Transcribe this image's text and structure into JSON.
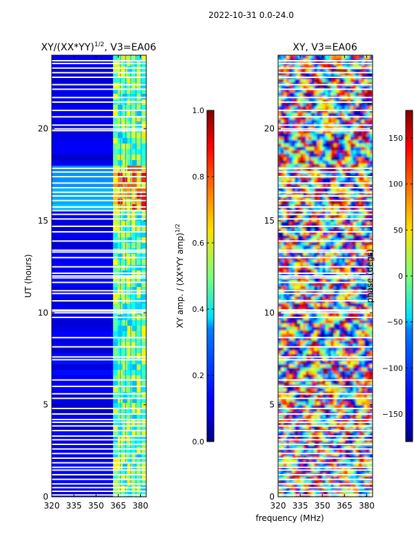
{
  "suptitle": "2022-10-31 0.0-24.0",
  "shared_xlabel": "frequency (MHz)",
  "chart_data": [
    {
      "type": "heatmap",
      "title": "XY/(XX*YY)",
      "title_superscript": "1/2",
      "title_suffix": ", V3=EA06",
      "xlabel": "",
      "ylabel": "UT (hours)",
      "xlim": [
        320,
        384
      ],
      "ylim": [
        0,
        24
      ],
      "x_ticks": [
        320,
        335,
        350,
        365,
        380
      ],
      "x_tick_labels": [
        "320",
        "335",
        "350",
        "365",
        "380"
      ],
      "y_ticks": [
        0,
        5,
        10,
        15,
        20
      ],
      "y_tick_labels": [
        "0",
        "5",
        "10",
        "15",
        "20"
      ],
      "colorbar": {
        "label": "XY amp. / (XX*YY amp)",
        "label_superscript": "1/2",
        "range": [
          0.0,
          1.0
        ],
        "ticks": [
          0.0,
          0.2,
          0.4,
          0.6,
          0.8,
          1.0
        ],
        "tick_labels": [
          "0.0",
          "0.2",
          "0.4",
          "0.6",
          "0.8",
          "1.0"
        ],
        "colormap": "jet"
      },
      "hot_band_mhz": [
        361.5,
        384
      ],
      "hot_channel_lines_mhz": [
        366.5,
        370,
        373.5,
        377,
        380.5
      ],
      "bright_ut_band": [
        15.5,
        18
      ],
      "flagged_ut_hours": [
        0.1,
        0.3,
        0.5,
        0.7,
        0.95,
        1.2,
        1.45,
        1.6,
        1.85,
        2.1,
        2.35,
        2.6,
        2.85,
        3.1,
        3.3,
        3.6,
        3.85,
        4.05,
        4.2,
        4.5,
        4.8,
        5.35,
        5.6,
        6.0,
        6.35,
        7.45,
        7.6,
        8.15,
        8.65,
        9.75,
        10.0,
        10.1,
        10.15,
        10.65,
        11.05,
        11.2,
        11.65,
        11.9,
        12.0,
        12.15,
        12.5,
        13.0,
        13.3,
        13.4,
        13.9,
        14.4,
        14.7,
        15.1,
        15.35,
        15.55,
        15.75,
        16.1,
        16.35,
        16.55,
        16.8,
        17.05,
        17.4,
        17.65,
        17.85,
        19.9,
        20.0,
        20.2,
        20.65,
        21.0,
        21.45,
        21.7,
        22.15,
        22.4,
        22.8,
        23.05,
        23.3,
        23.55,
        23.7
      ]
    },
    {
      "type": "heatmap",
      "title": "XY, V3=EA06",
      "xlabel": "frequency (MHz)",
      "ylabel": "",
      "xlim": [
        320,
        384
      ],
      "ylim": [
        0,
        24
      ],
      "x_ticks": [
        320,
        335,
        350,
        365,
        380
      ],
      "x_tick_labels": [
        "320",
        "335",
        "350",
        "365",
        "380"
      ],
      "y_ticks": [
        0,
        5,
        10,
        15,
        20
      ],
      "y_tick_labels": [
        "0",
        "5",
        "10",
        "15",
        "20"
      ],
      "colorbar": {
        "label": "phase (degs)",
        "range": [
          -180,
          180
        ],
        "ticks": [
          -150,
          -100,
          -50,
          0,
          50,
          100,
          150
        ],
        "tick_labels": [
          "−150",
          "−100",
          "−50",
          "0",
          "50",
          "100",
          "150"
        ],
        "colormap": "jet"
      },
      "flagged_ut_hours": [
        0.1,
        0.3,
        0.5,
        0.7,
        0.95,
        1.2,
        1.45,
        1.6,
        1.85,
        2.1,
        2.35,
        2.6,
        2.85,
        3.1,
        3.3,
        3.6,
        3.85,
        4.05,
        4.2,
        4.5,
        4.8,
        5.35,
        5.6,
        6.0,
        6.35,
        7.45,
        7.6,
        8.15,
        8.65,
        9.75,
        10.0,
        10.1,
        10.15,
        10.65,
        11.05,
        11.2,
        11.65,
        11.9,
        12.0,
        12.15,
        12.5,
        13.0,
        13.3,
        13.4,
        13.9,
        14.4,
        14.7,
        15.1,
        15.35,
        15.55,
        15.75,
        16.1,
        16.35,
        16.55,
        16.8,
        17.05,
        17.4,
        17.65,
        17.85,
        19.9,
        20.0,
        20.2,
        20.65,
        21.0,
        21.45,
        21.7,
        22.15,
        22.4,
        22.8,
        23.05,
        23.3,
        23.55,
        23.7
      ]
    }
  ]
}
